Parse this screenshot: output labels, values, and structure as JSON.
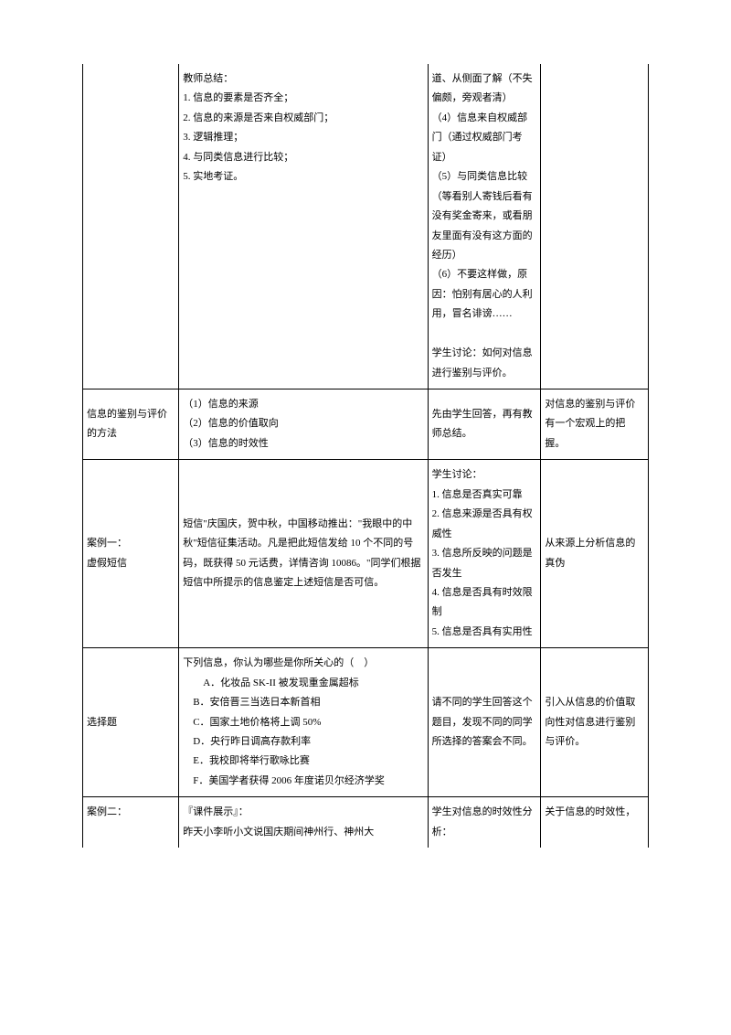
{
  "rows": [
    {
      "c1": "",
      "c2": "教师总结：\n1. 信息的要素是否齐全；\n2. 信息的来源是否来自权威部门；\n3. 逻辑推理；\n4. 与同类信息进行比较；\n5. 实地考证。",
      "c3": "道、从侧面了解（不失偏颇，旁观者清）\n（4）信息来自权威部门（通过权威部门考证）\n（5）与同类信息比较（等看别人寄钱后看有没有奖金寄来，或看朋友里面有没有这方面的经历）\n（6）不要这样做，原因：怕别有居心的人利用，冒名诽谤……\n\n学生讨论：如何对信息进行鉴别与评价。",
      "c4": ""
    },
    {
      "c1": "信息的鉴别与评价的方法",
      "c2": "（1）信息的来源\n（2）信息的价值取向\n（3）信息的时效性",
      "c3": "先由学生回答，再有教师总结。",
      "c4": "对信息的鉴别与评价有一个宏观上的把握。"
    },
    {
      "c1": "案例一：\n虚假短信",
      "c2": "短信\"庆国庆，贺中秋，中国移动推出：\"我眼中的中秋\"短信征集活动。凡是把此短信发给 10 个不同的号码，既获得 50 元话费，详情咨询 10086。\"同学们根据短信中所提示的信息鉴定上述短信是否可信。",
      "c3": "学生讨论：\n1. 信息是否真实可靠\n2. 信息来源是否具有权威性\n3. 信息所反映的问题是否发生\n4. 信息是否具有时效限制\n5. 信息是否具有实用性",
      "c4": "从来源上分析信息的真伪"
    },
    {
      "c1": "选择题",
      "c2": "下列信息，你认为哪些是你所关心的（　）\n　　A．化妆品 SK-II 被发现重金属超标\n　B．安倍晋三当选日本新首相\n　C．国家土地价格将上调 50%\n　D．央行昨日调高存款利率\n　E．我校即将举行歌咏比赛\n　F．美国学者获得 2006 年度诺贝尔经济学奖",
      "c3": "请不同的学生回答这个题目，发现不同的同学所选择的答案会不同。",
      "c4": "引入从信息的价值取向性对信息进行鉴别与评价。"
    },
    {
      "c1": "案例二：",
      "c2": "『课件展示』：\n昨天小李听小文说国庆期间神州行、神州大",
      "c3": "学生对信息的时效性分析：",
      "c4": "关于信息的时效性，"
    }
  ]
}
